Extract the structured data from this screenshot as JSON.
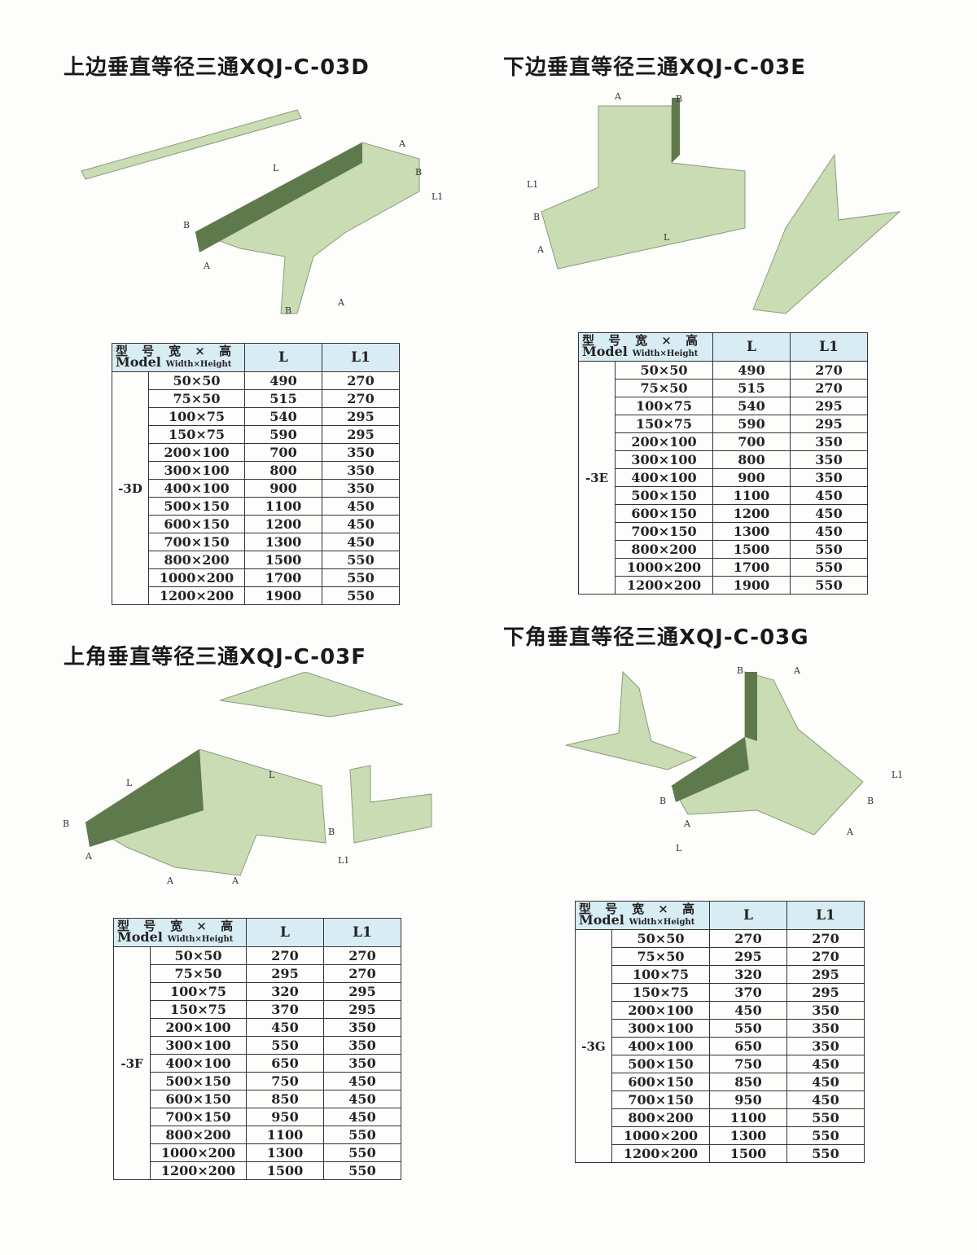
{
  "sections": [
    {
      "title": "上边垂直等径三通XQJ-C-03D",
      "group": "-3D",
      "dim_labels": [
        "L",
        "A",
        "B",
        "L1",
        "B",
        "A",
        "B",
        "A"
      ],
      "rows": [
        [
          "50×50",
          "490",
          "270"
        ],
        [
          "75×50",
          "515",
          "270"
        ],
        [
          "100×75",
          "540",
          "295"
        ],
        [
          "150×75",
          "590",
          "295"
        ],
        [
          "200×100",
          "700",
          "350"
        ],
        [
          "300×100",
          "800",
          "350"
        ],
        [
          "400×100",
          "900",
          "350"
        ],
        [
          "500×150",
          "1100",
          "450"
        ],
        [
          "600×150",
          "1200",
          "450"
        ],
        [
          "700×150",
          "1300",
          "450"
        ],
        [
          "800×200",
          "1500",
          "550"
        ],
        [
          "1000×200",
          "1700",
          "550"
        ],
        [
          "1200×200",
          "1900",
          "550"
        ]
      ]
    },
    {
      "title": "下边垂直等径三通XQJ-C-03E",
      "group": "-3E",
      "dim_labels": [
        "A",
        "B",
        "L1",
        "B",
        "A",
        "L"
      ],
      "rows": [
        [
          "50×50",
          "490",
          "270"
        ],
        [
          "75×50",
          "515",
          "270"
        ],
        [
          "100×75",
          "540",
          "295"
        ],
        [
          "150×75",
          "590",
          "295"
        ],
        [
          "200×100",
          "700",
          "350"
        ],
        [
          "300×100",
          "800",
          "350"
        ],
        [
          "400×100",
          "900",
          "350"
        ],
        [
          "500×150",
          "1100",
          "450"
        ],
        [
          "600×150",
          "1200",
          "450"
        ],
        [
          "700×150",
          "1300",
          "450"
        ],
        [
          "800×200",
          "1500",
          "550"
        ],
        [
          "1000×200",
          "1700",
          "550"
        ],
        [
          "1200×200",
          "1900",
          "550"
        ]
      ]
    },
    {
      "title": "上角垂直等径三通XQJ-C-03F",
      "group": "-3F",
      "dim_labels": [
        "L",
        "L",
        "B",
        "B",
        "A",
        "A",
        "A",
        "L1"
      ],
      "rows": [
        [
          "50×50",
          "270",
          "270"
        ],
        [
          "75×50",
          "295",
          "270"
        ],
        [
          "100×75",
          "320",
          "295"
        ],
        [
          "150×75",
          "370",
          "295"
        ],
        [
          "200×100",
          "450",
          "350"
        ],
        [
          "300×100",
          "550",
          "350"
        ],
        [
          "400×100",
          "650",
          "350"
        ],
        [
          "500×150",
          "750",
          "450"
        ],
        [
          "600×150",
          "850",
          "450"
        ],
        [
          "700×150",
          "950",
          "450"
        ],
        [
          "800×200",
          "1100",
          "550"
        ],
        [
          "1000×200",
          "1300",
          "550"
        ],
        [
          "1200×200",
          "1500",
          "550"
        ]
      ]
    },
    {
      "title": "下角垂直等径三通XQJ-C-03G",
      "group": "-3G",
      "dim_labels": [
        "B",
        "A",
        "L1",
        "B",
        "A",
        "B",
        "A",
        "L"
      ],
      "rows": [
        [
          "50×50",
          "270",
          "270"
        ],
        [
          "75×50",
          "295",
          "270"
        ],
        [
          "100×75",
          "320",
          "295"
        ],
        [
          "150×75",
          "370",
          "295"
        ],
        [
          "200×100",
          "450",
          "350"
        ],
        [
          "300×100",
          "550",
          "350"
        ],
        [
          "400×100",
          "650",
          "350"
        ],
        [
          "500×150",
          "750",
          "450"
        ],
        [
          "600×150",
          "850",
          "450"
        ],
        [
          "700×150",
          "950",
          "450"
        ],
        [
          "800×200",
          "1100",
          "550"
        ],
        [
          "1000×200",
          "1300",
          "550"
        ],
        [
          "1200×200",
          "1500",
          "550"
        ]
      ]
    }
  ],
  "table_header": {
    "model_cn": "型 号",
    "model_en": "Model",
    "size_cn": "宽 × 高",
    "size_en": "Width×Height",
    "col_l": "L",
    "col_l1": "L1"
  },
  "colors": {
    "tray_green": "#c9dcb4",
    "tray_dark": "#5e7a4c",
    "header_blue": "#d8ecf4"
  }
}
